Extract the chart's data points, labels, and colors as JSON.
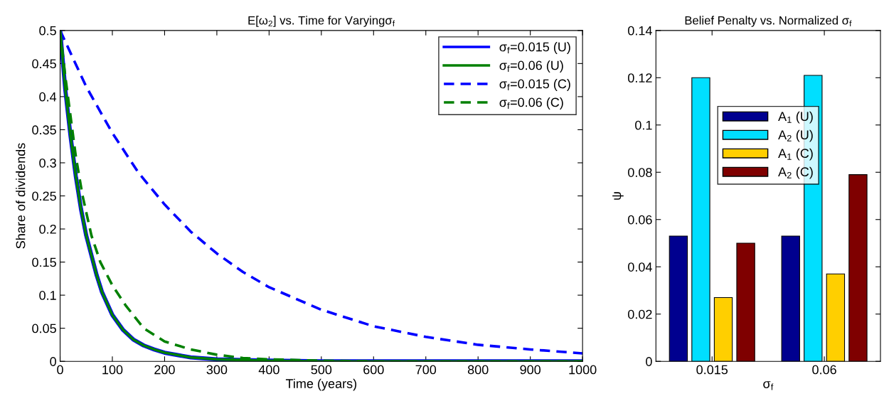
{
  "chart_data": [
    {
      "type": "line",
      "title": "E[ω$_{2}$] vs. Time for Varyingσ$_{f}$",
      "xlabel": "Time (years)",
      "ylabel": "Share of dividends",
      "xlim": [
        0,
        1000
      ],
      "ylim": [
        0,
        0.5
      ],
      "xticks": [
        0,
        100,
        200,
        300,
        400,
        500,
        600,
        700,
        800,
        900,
        1000
      ],
      "yticks": [
        0,
        0.05,
        0.1,
        0.15,
        0.2,
        0.25,
        0.3,
        0.35,
        0.4,
        0.45,
        0.5
      ],
      "legend": "top right",
      "grid": false,
      "series": [
        {
          "name": "σ$_{f}$=0.015 (U)",
          "color": "#0000ff",
          "line_style": "solid",
          "x": [
            0,
            10,
            20,
            30,
            40,
            50,
            60,
            70,
            80,
            100,
            120,
            140,
            160,
            180,
            200,
            250,
            300,
            350,
            400,
            500,
            600,
            800,
            1000
          ],
          "values": [
            0.5,
            0.41,
            0.34,
            0.28,
            0.23,
            0.19,
            0.16,
            0.13,
            0.105,
            0.07,
            0.048,
            0.033,
            0.024,
            0.018,
            0.013,
            0.006,
            0.003,
            0.002,
            0.001,
            0,
            0,
            0,
            0
          ]
        },
        {
          "name": "σ$_{f}$=0.06 (U)",
          "color": "#008000",
          "line_style": "solid",
          "x": [
            0,
            10,
            20,
            30,
            40,
            50,
            60,
            70,
            80,
            100,
            120,
            140,
            160,
            180,
            200,
            250,
            300,
            350,
            400,
            500,
            600,
            800,
            1000
          ],
          "values": [
            0.5,
            0.41,
            0.34,
            0.28,
            0.23,
            0.19,
            0.16,
            0.13,
            0.105,
            0.07,
            0.048,
            0.033,
            0.024,
            0.018,
            0.013,
            0.006,
            0.003,
            0.002,
            0.001,
            0,
            0,
            0,
            0
          ]
        },
        {
          "name": "σ$_{f}$=0.015 (C)",
          "color": "#0000ff",
          "line_style": "dashed",
          "x": [
            0,
            50,
            100,
            150,
            200,
            250,
            300,
            350,
            400,
            500,
            600,
            700,
            800,
            900,
            1000
          ],
          "values": [
            0.5,
            0.415,
            0.345,
            0.285,
            0.237,
            0.196,
            0.163,
            0.135,
            0.112,
            0.078,
            0.053,
            0.037,
            0.025,
            0.018,
            0.012
          ]
        },
        {
          "name": "σ$_{f}$=0.06 (C)",
          "color": "#008000",
          "line_style": "dashed",
          "x": [
            0,
            10,
            20,
            30,
            43,
            60,
            77,
            100,
            125,
            160,
            200,
            250,
            300,
            350,
            400,
            500,
            600,
            1000
          ],
          "values": [
            0.5,
            0.43,
            0.37,
            0.31,
            0.25,
            0.19,
            0.15,
            0.115,
            0.085,
            0.05,
            0.03,
            0.018,
            0.01,
            0.005,
            0.003,
            0.001,
            0,
            0
          ]
        }
      ]
    },
    {
      "type": "bar",
      "title": "Belief Penalty vs. Normalized σ$_{f}$",
      "xlabel": "σ$_{f}$",
      "ylabel": "ψ",
      "categories": [
        "0.015",
        "0.06"
      ],
      "ylim": [
        0,
        0.14
      ],
      "yticks": [
        0,
        0.02,
        0.04,
        0.06,
        0.08,
        0.1,
        0.12,
        0.14
      ],
      "legend": "top",
      "grid": false,
      "series": [
        {
          "name": "A$_{1}$ (U)",
          "color": "#00008f",
          "values": [
            0.053,
            0.053
          ]
        },
        {
          "name": "A$_{2}$ (U)",
          "color": "#00dfff",
          "values": [
            0.12,
            0.121
          ]
        },
        {
          "name": "A$_{1}$ (C)",
          "color": "#ffcf00",
          "values": [
            0.027,
            0.037
          ]
        },
        {
          "name": "A$_{2}$ (C)",
          "color": "#7f0000",
          "values": [
            0.05,
            0.079
          ]
        }
      ]
    }
  ]
}
